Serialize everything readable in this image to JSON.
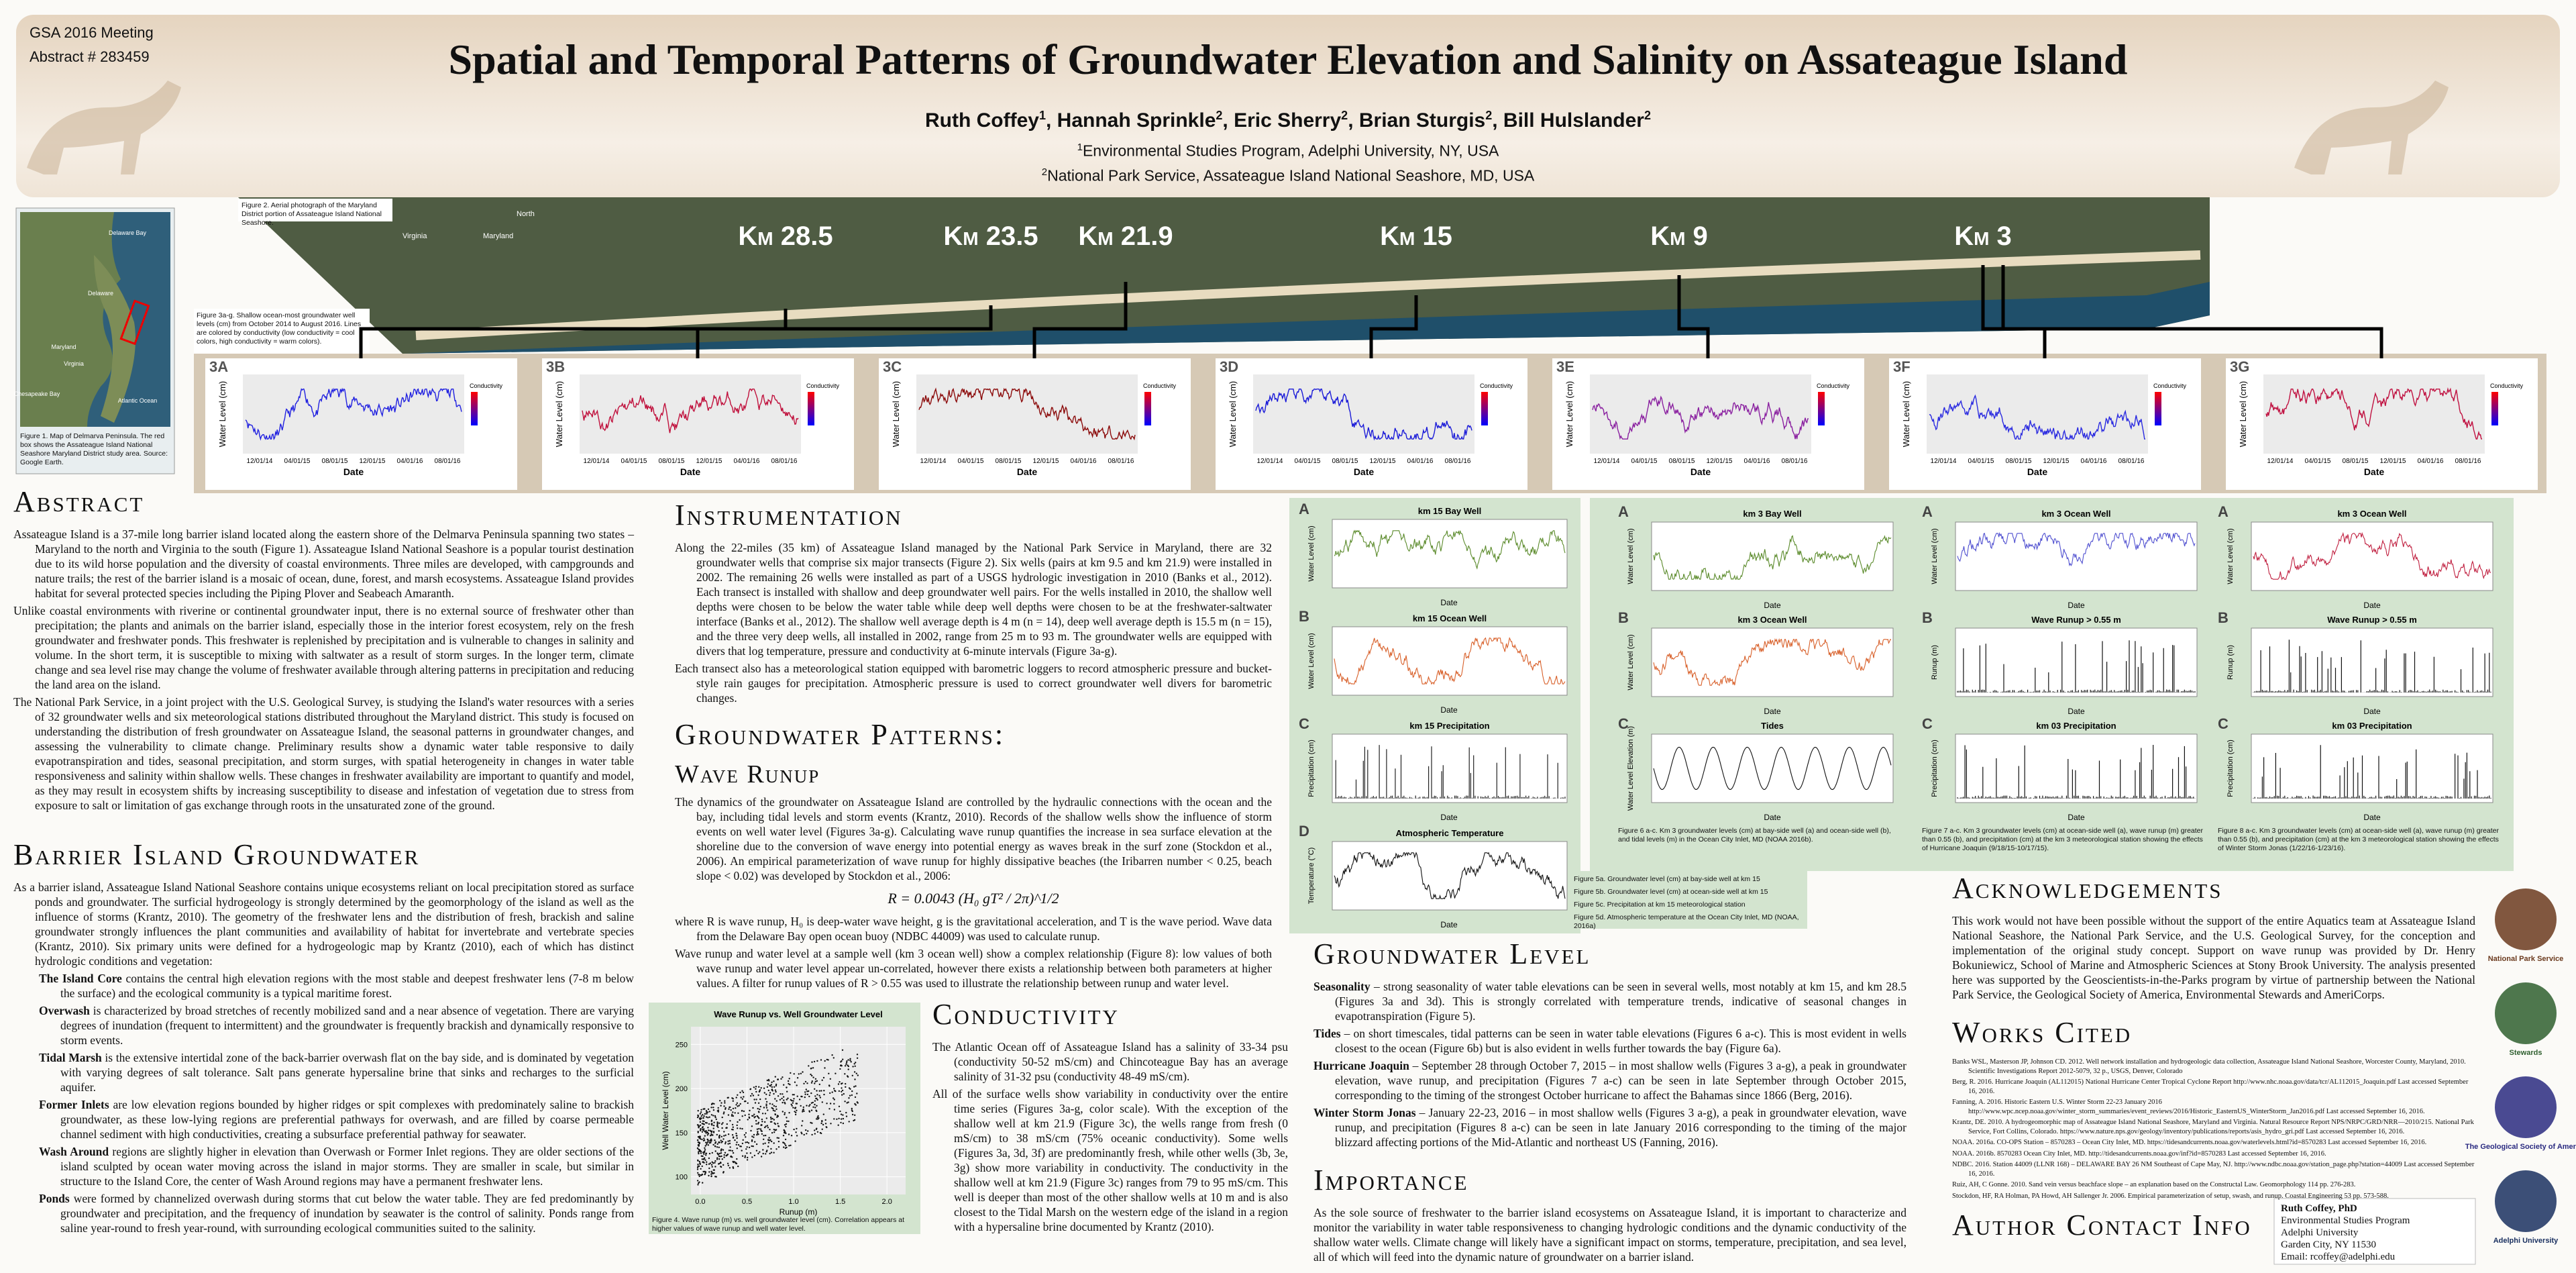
{
  "header": {
    "meeting": "GSA 2016 Meeting",
    "abstract_no": "Abstract # 283459",
    "title": "Spatial and Temporal Patterns of Groundwater Elevation and Salinity on Assateague Island",
    "authors": [
      {
        "name": "Ruth Coffey",
        "sup": "1"
      },
      {
        "name": "Hannah Sprinkle",
        "sup": "2"
      },
      {
        "name": "Eric Sherry",
        "sup": "2"
      },
      {
        "name": "Brian Sturgis",
        "sup": "2"
      },
      {
        "name": "Bill Hulslander",
        "sup": "2"
      }
    ],
    "affiliations": [
      {
        "sup": "1",
        "text": "Environmental Studies Program, Adelphi University, NY, USA"
      },
      {
        "sup": "2",
        "text": "National Park Service, Assateague Island National Seashore, MD, USA"
      }
    ]
  },
  "map": {
    "labels": [
      "Delaware Bay",
      "Delaware",
      "Maryland",
      "Virginia",
      "Chesapeake Bay",
      "Atlantic Ocean"
    ],
    "caption": "Figure 1. Map of Delmarva Peninsula. The red box shows the Assateague Island National Seashore Maryland District study area. Source: Google Earth."
  },
  "aerial": {
    "caption": "Figure 2. Aerial photograph of the Maryland District portion of Assateague Island National Seashore.",
    "labels": [
      "Virginia",
      "Maryland",
      "North"
    ],
    "km_labels": [
      "Km 28.5",
      "Km 23.5",
      "Km 21.9",
      "Km 15",
      "Km 9",
      "Km 3"
    ]
  },
  "well_panels": {
    "caption": "Figure 3a-g. Shallow ocean-most groundwater well levels (cm) from October 2014 to August 2016. Lines are colored by conductivity (low conductivity = cool colors, high conductivity = warm colors).",
    "labels": [
      "3A",
      "3B",
      "3C",
      "3D",
      "3E",
      "3F",
      "3G"
    ],
    "colors": [
      "#2020e0",
      "#c0103c",
      "#8b0a0a",
      "#1a1ad8",
      "#8a20a0",
      "#2a2ae0",
      "#c01040"
    ],
    "y_label": "Water Level (cm)",
    "x_label": "Date",
    "x_ticks": [
      "12/01/14",
      "04/01/15",
      "08/01/15",
      "12/01/15",
      "04/01/16",
      "08/01/16"
    ],
    "legend_title": "Conductivity"
  },
  "abstract": {
    "heading": "Abstract",
    "paragraphs": [
      "Assateague Island is a 37-mile long barrier island located along the eastern shore of the Delmarva Peninsula spanning two states – Maryland to the north and Virginia to the south (Figure 1). Assateague Island National Seashore is a popular tourist destination due to its wild horse population and the diversity of coastal environments. Three miles are developed, with campgrounds and nature trails; the rest of the barrier island is a mosaic of ocean, dune, forest, and marsh ecosystems. Assateague Island provides habitat for several protected species including the Piping Plover and Seabeach Amaranth.",
      "Unlike coastal environments with riverine or continental groundwater input, there is no external source of freshwater other than precipitation; the plants and animals on the barrier island, especially those in the interior forest ecosystem, rely on the fresh groundwater and freshwater ponds. This freshwater is replenished by precipitation and is vulnerable to changes in salinity and volume. In the short term, it is susceptible to mixing with saltwater as a result of storm surges. In the longer term, climate change and sea level rise may change the volume of freshwater available through altering patterns in precipitation and reducing the land area on the island.",
      "The National Park Service, in a joint project with the U.S. Geological Survey, is studying the Island's water resources with a series of 32 groundwater wells and six meteorological stations distributed throughout the Maryland district. This study is focused on understanding the distribution of fresh groundwater on Assateague Island, the seasonal patterns in groundwater changes, and assessing the vulnerability to climate change. Preliminary results show a dynamic water table responsive to daily evapotranspiration and tides, seasonal precipitation, and storm surges, with spatial heterogeneity in changes in water table responsiveness and salinity within shallow wells. These changes in freshwater availability are important to quantify and model, as they may result in ecosystem shifts by increasing susceptibility to disease and infestation of vegetation due to stress from exposure to salt or limitation of gas exchange through roots in the unsaturated zone of the ground."
    ]
  },
  "barrier": {
    "heading": "Barrier Island Groundwater",
    "intro": "As a barrier island, Assateague Island National Seashore contains unique ecosystems reliant on local precipitation stored as surface ponds and groundwater. The surficial hydrogeology is strongly determined by the geomorphology of the island as well as the influence of storms (Krantz, 2010). The geometry of the freshwater lens and the distribution of fresh, brackish and saline groundwater strongly influences the plant communities and availability of habitat for invertebrate and vertebrate species (Krantz, 2010). Six primary units were defined for a hydrogeologic map by Krantz (2010), each of which has distinct hydrologic conditions and vegetation:",
    "units": [
      {
        "term": "The Island Core",
        "text": " contains the central high elevation regions with the most stable and deepest freshwater lens (7-8 m below the surface) and the ecological community is a typical maritime forest."
      },
      {
        "term": "Overwash",
        "text": " is characterized by broad stretches of recently mobilized sand and a near absence of vegetation. There are varying degrees of inundation (frequent to intermittent) and the groundwater is frequently brackish and dynamically responsive to storm events."
      },
      {
        "term": "Tidal Marsh",
        "text": " is the extensive intertidal zone of the back-barrier overwash flat on the bay side, and is dominated by vegetation with varying degrees of salt tolerance. Salt pans generate hypersaline brine that sinks and recharges to the surficial aquifer."
      },
      {
        "term": "Former Inlets",
        "text": " are low elevation regions bounded by higher ridges or spit complexes with predominately saline to brackish groundwater, as these low-lying regions are preferential pathways for overwash, and are filled by coarse permeable channel sediment with high conductivities, creating a subsurface preferential pathway for seawater."
      },
      {
        "term": "Wash Around",
        "text": " regions are slightly higher in elevation than Overwash or Former Inlet regions. They are older sections of the island sculpted by ocean water moving across the island in major storms. They are smaller in scale, but similar in structure to the Island Core, the center of Wash Around regions may have a permanent freshwater lens."
      },
      {
        "term": "Ponds",
        "text": " were formed by channelized overwash during storms that cut below the water table. They are fed predominantly by groundwater and precipitation, and the frequency of inundation by seawater is the control of salinity. Ponds range from saline year-round to fresh year-round, with surrounding ecological communities suited to the salinity."
      }
    ]
  },
  "instrumentation": {
    "heading": "Instrumentation",
    "paragraphs": [
      "Along the 22-miles (35 km) of Assateague Island managed by the National Park Service in Maryland, there are 32 groundwater wells that comprise six major transects (Figure 2). Six wells (pairs at km 9.5 and km 21.9) were installed in 2002. The remaining 26 wells were installed as part of a USGS hydrologic investigation in 2010 (Banks et al., 2012). Each transect is installed with shallow and deep groundwater well pairs. For the wells installed in 2010, the shallow well depths were chosen to be below the water table while deep well depths were chosen to be at the freshwater-saltwater interface (Banks et al., 2012). The shallow well average depth is 4 m (n = 14), deep well average depth is 15.5 m (n = 15), and the three very deep wells, all installed in 2002, range from 25 m to 93 m. The groundwater wells are equipped with divers that log temperature, pressure and conductivity at 6-minute intervals (Figure 3a-g).",
      "Each transect also has a meteorological station equipped with barometric loggers to record atmospheric pressure and bucket-style rain gauges for precipitation. Atmospheric pressure is used to correct groundwater well divers for barometric changes."
    ]
  },
  "patterns": {
    "heading": "Groundwater Patterns:",
    "subheading": "Wave Runup",
    "paragraphs": [
      "The dynamics of the groundwater on Assateague Island are controlled by the hydraulic connections with the ocean and the bay, including tidal levels and storm events (Krantz, 2010). Records of the shallow wells show the influence of storm events on well water level (Figures 3a-g). Calculating wave runup quantifies the increase in sea surface elevation at the shoreline due to the conversion of wave energy into potential energy as waves break in the surf zone (Stockdon et al., 2006). An empirical parameterization of wave runup for highly dissipative beaches (the Iribarren number < 0.25, beach slope < 0.02) was developed by Stockdon et al., 2006:"
    ],
    "equation": "R = 0.0043 (H₀ gT² / 2π)^1/2",
    "after": [
      "where R is wave runup, H₀ is deep-water wave height, g is the gravitational acceleration, and T is the wave period. Wave data from the Delaware Bay open ocean buoy (NDBC 44009) was used to calculate runup.",
      "Wave runup and water level at a sample well (km 3 ocean well) show a complex relationship (Figure 8): low values of both wave runup and water level appear un-correlated, however there exists a relationship between both parameters at higher values. A filter for runup values of R > 0.55 was used to illustrate the relationship between runup and water level."
    ]
  },
  "figure4": {
    "title": "Wave Runup vs. Well Groundwater Level",
    "y_label": "Well Water Level (cm)",
    "x_label": "Runup (m)",
    "xlim": [
      -0.1,
      2.2
    ],
    "ylim": [
      80,
      270
    ],
    "x_ticks": [
      {
        "value": 0,
        "label": "0.0"
      },
      {
        "value": 0.5,
        "label": "0.5"
      },
      {
        "value": 1,
        "label": "1.0"
      },
      {
        "value": 1.5,
        "label": "1.5"
      },
      {
        "value": 2,
        "label": "2.0"
      }
    ],
    "y_ticks": [
      100,
      150,
      200,
      250
    ],
    "caption": "Figure 4. Wave runup (m) vs. well groundwater level (cm). Correlation appears at higher values of wave runup and well water level."
  },
  "conductivity": {
    "heading": "Conductivity",
    "paragraphs": [
      "The Atlantic Ocean off of Assateague Island has a salinity of 33-34 psu (conductivity 50-52 mS/cm) and Chincoteague Bay has an average salinity of 31-32 psu (conductivity 48-49 mS/cm).",
      "All of the surface wells show variability in conductivity over the entire time series (Figures 3a-g, color scale). With the exception of the shallow well at km 21.9 (Figure 3c), the wells range from fresh (0 mS/cm) to 38 mS/cm (75% oceanic conductivity). Some wells (Figures 3a, 3d, 3f) are predominantly fresh, while other wells (3b, 3e, 3g) show more variability in conductivity. The conductivity in the shallow well at km 21.9 (Figure 3c) ranges from 79 to 95 mS/cm. This well is deeper than most of the other shallow wells at 10 m and is also closest to the Tidal Marsh on the western edge of the island in a region with a hypersaline brine documented by Krantz (2010)."
    ]
  },
  "figure5": {
    "x_label": "Date",
    "panels": [
      {
        "letter": "A",
        "title": "km 15 Bay Well",
        "y_label": "Water Level (cm)"
      },
      {
        "letter": "B",
        "title": "km 15 Ocean Well",
        "y_label": "Water Level (cm)"
      },
      {
        "letter": "C",
        "title": "km 15 Precipitation",
        "y_label": "Precipitation (cm)"
      },
      {
        "letter": "D",
        "title": "Atmospheric Temperature",
        "y_label": "Temperature (°C)"
      }
    ],
    "captions": [
      "Figure 5a. Groundwater level (cm) at bay-side well at km 15",
      "Figure 5b. Groundwater level (cm) at ocean-side well at km 15",
      "Figure 5c. Precipitation at km 15 meteorological station",
      "Figure 5d. Atmospheric temperature at the Ocean City Inlet, MD (NOAA, 2016a)"
    ]
  },
  "figure6": {
    "x_label": "Date",
    "panels": [
      {
        "letter": "A",
        "title": "km 3 Bay Well",
        "y_label": "Water Level (cm)"
      },
      {
        "letter": "B",
        "title": "km 3 Ocean Well",
        "y_label": "Water Level (cm)"
      },
      {
        "letter": "C",
        "title": "Tides",
        "y_label": "Water Level Elevation (m)"
      }
    ],
    "caption": "Figure 6 a-c. Km 3 groundwater levels (cm) at bay-side well (a) and ocean-side well (b), and tidal levels (m) in the Ocean City Inlet, MD (NOAA 2016b)."
  },
  "figure7": {
    "x_label": "Date",
    "panels": [
      {
        "letter": "A",
        "title": "km 3 Ocean Well",
        "y_label": "Water Level (cm)"
      },
      {
        "letter": "B",
        "title": "Wave Runup > 0.55 m",
        "y_label": "Runup (m)"
      },
      {
        "letter": "C",
        "title": "km 03 Precipitation",
        "y_label": "Precipitation (cm)"
      }
    ],
    "caption": "Figure 7 a-c. Km 3 groundwater levels (cm) at ocean-side well (a), wave runup (m) greater than 0.55 (b), and precipitation (cm) at the km 3 meteorological station showing the effects of Hurricane Joaquin (9/18/15-10/17/15)."
  },
  "figure8": {
    "x_label": "Date",
    "panels": [
      {
        "letter": "A",
        "title": "km 3 Ocean Well",
        "y_label": "Water Level (cm)"
      },
      {
        "letter": "B",
        "title": "Wave Runup > 0.55 m",
        "y_label": "Runup (m)"
      },
      {
        "letter": "C",
        "title": "km 03 Precipitation",
        "y_label": "Precipitation (cm)"
      }
    ],
    "caption": "Figure 8 a-c. Km 3 groundwater levels (cm) at ocean-side well (a), wave runup (m) greater than 0.55 (b), and precipitation (cm) at the km 3 meteorological station showing the effects of Winter Storm Jonas (1/22/16-1/23/16)."
  },
  "gw_level": {
    "heading": "Groundwater Level",
    "items": [
      {
        "term": "Seasonality",
        "text": " – strong seasonality of water table elevations can be seen in several wells, most notably at km 15, and km 28.5 (Figures 3a and 3d). This is strongly correlated with temperature trends, indicative of seasonal changes in evapotranspiration (Figure 5)."
      },
      {
        "term": "Tides",
        "text": " – on short timescales, tidal patterns can be seen in water table elevations (Figures 6 a-c). This is most evident in wells closest to the ocean (Figure 6b) but is also evident in wells further towards the bay (Figure 6a)."
      },
      {
        "term": "Hurricane Joaquin",
        "text": " – September 28 through October 7, 2015 – in most shallow wells (Figures 3 a-g), a peak in groundwater elevation, wave runup, and precipitation (Figures 7 a-c) can be seen in late September through October 2015, corresponding to the timing of the strongest October hurricane to affect the Bahamas since 1866 (Berg, 2016)."
      },
      {
        "term": "Winter Storm Jonas",
        "text": " – January 22-23, 2016 – in most shallow wells (Figures 3 a-g), a peak in groundwater elevation, wave runup, and precipitation (Figures 8 a-c) can be seen in late January 2016 corresponding to the timing of the major blizzard affecting portions of the Mid-Atlantic and northeast US (Fanning, 2016)."
      }
    ]
  },
  "importance": {
    "heading": "Importance",
    "text": "As the sole source of freshwater to the barrier island ecosystems on Assateague Island, it is important to characterize and monitor the variability in water table responsiveness to changing hydrologic conditions and the dynamic conductivity of the shallow water wells. Climate change will likely have a significant impact on storms, temperature, precipitation, and sea level, all of which will feed into the dynamic nature of groundwater on a barrier island."
  },
  "acknowledgements": {
    "heading": "Acknowledgements",
    "text": "This work would not have been possible without the support of the entire Aquatics team at Assateague Island National Seashore, the National Park Service, and the U.S. Geological Survey, for the conception and implementation of the original study concept. Support on wave runup was provided by Dr. Henry Bokuniewicz, School of Marine and Atmospheric Sciences at Stony Brook University. The analysis presented here was supported by the Geoscientists-in-the-Parks program by virtue of partnership between the National Park Service, the Geological Society of America, Environmental Stewards and AmeriCorps."
  },
  "works_cited": {
    "heading": "Works Cited",
    "refs": [
      "Banks WSL, Masterson JP, Johnson CD. 2012. Well network installation and hydrogeologic data collection, Assateague Island National Seashore, Worcester County, Maryland, 2010. Scientific Investigations Report 2012-5079, 32 p., USGS, Denver, Colorado",
      "Berg, R. 2016. Hurricane Joaquin (AL112015) National Hurricane Center Tropical Cyclone Report http://www.nhc.noaa.gov/data/tcr/AL112015_Joaquin.pdf Last accessed September 16, 2016.",
      "Fanning, A. 2016. Historic Eastern U.S. Winter Storm 22-23 January 2016 http://www.wpc.ncep.noaa.gov/winter_storm_summaries/event_reviews/2016/Historic_EasternUS_WinterStorm_Jan2016.pdf Last accessed September 16, 2016.",
      "Krantz, DE. 2010. A hydrogeomorphic map of Assateague Island National Seashore, Maryland and Virginia. Natural Resource Report NPS/NRPC/GRD/NRR—2010/215. National Park Service, Fort Collins, Colorado. https://www.nature.nps.gov/geology/inventory/publications/reports/asis_hydro_gri.pdf Last accessed September 16, 2016.",
      "NOAA. 2016a. CO-OPS Station – 8570283 – Ocean City Inlet, MD. https://tidesandcurrents.noaa.gov/waterlevels.html?id=8570283 Last accessed September 16, 2016.",
      "NOAA. 2016b. 8570283 Ocean City Inlet, MD. http://tidesandcurrents.noaa.gov/inf?id=8570283 Last accessed September 16, 2016.",
      "NDBC. 2016. Station 44009 (LLNR 168) – DELAWARE BAY 26 NM Southeast of Cape May, NJ. http://www.ndbc.noaa.gov/station_page.php?station=44009 Last accessed September 16, 2016.",
      "Ruiz, AH, C Gonne. 2010. Sand vein versus beachface slope – an explanation based on the Constructal Law. Geomorphology 114 pp. 276-283.",
      "Stockdon, HF, RA Holman, PA Howd, AH Sallenger Jr. 2006. Empirical parameterization of setup, swash, and runup. Coastal Engineering 53 pp. 573-588."
    ]
  },
  "contact": {
    "heading": "Author Contact Info",
    "lines": [
      "Ruth Coffey, PhD",
      "Environmental Studies Program",
      "Adelphi University",
      "Garden City, NY 11530",
      "Email: rcoffey@adelphi.edu"
    ]
  },
  "logos": [
    "National Park Service",
    "Stewards",
    "The Geological Society of America",
    "Adelphi University"
  ]
}
